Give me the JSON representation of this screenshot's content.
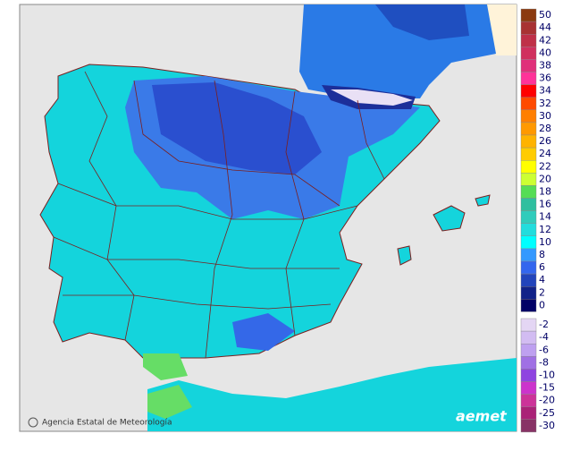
{
  "map": {
    "credit": "Agencia Estatal de Meteorología",
    "logo": "aemet",
    "legend": {
      "positive": [
        {
          "value": 50,
          "color": "#8b3a0f"
        },
        {
          "value": 44,
          "color": "#a83232"
        },
        {
          "value": 42,
          "color": "#bf3048"
        },
        {
          "value": 40,
          "color": "#d0305e"
        },
        {
          "value": 38,
          "color": "#e0307a"
        },
        {
          "value": 36,
          "color": "#ff3399"
        },
        {
          "value": 34,
          "color": "#ff0000"
        },
        {
          "value": 32,
          "color": "#ff4a00"
        },
        {
          "value": 30,
          "color": "#ff7f00"
        },
        {
          "value": 28,
          "color": "#ff9900"
        },
        {
          "value": 26,
          "color": "#ffb300"
        },
        {
          "value": 24,
          "color": "#ffcc00"
        },
        {
          "value": 22,
          "color": "#ffff00"
        },
        {
          "value": 20,
          "color": "#ccff33"
        },
        {
          "value": 18,
          "color": "#55dd55"
        },
        {
          "value": 16,
          "color": "#2fbf9f"
        },
        {
          "value": 14,
          "color": "#30ccbb"
        },
        {
          "value": 12,
          "color": "#22dddd"
        },
        {
          "value": 10,
          "color": "#00ffff"
        },
        {
          "value": 8,
          "color": "#3399ff"
        },
        {
          "value": 6,
          "color": "#3366ee"
        },
        {
          "value": 4,
          "color": "#2244bb"
        },
        {
          "value": 2,
          "color": "#112288"
        },
        {
          "value": 0,
          "color": "#000066"
        }
      ],
      "negative": [
        {
          "value": -2,
          "color": "#e4d6f4"
        },
        {
          "value": -4,
          "color": "#d2bcf2"
        },
        {
          "value": -6,
          "color": "#bea0f0"
        },
        {
          "value": -8,
          "color": "#a070e4"
        },
        {
          "value": -10,
          "color": "#8f44e0"
        },
        {
          "value": -15,
          "color": "#cc33cc"
        },
        {
          "value": -20,
          "color": "#cc3399"
        },
        {
          "value": -25,
          "color": "#aa2277"
        },
        {
          "value": -30,
          "color": "#883366"
        }
      ]
    }
  }
}
